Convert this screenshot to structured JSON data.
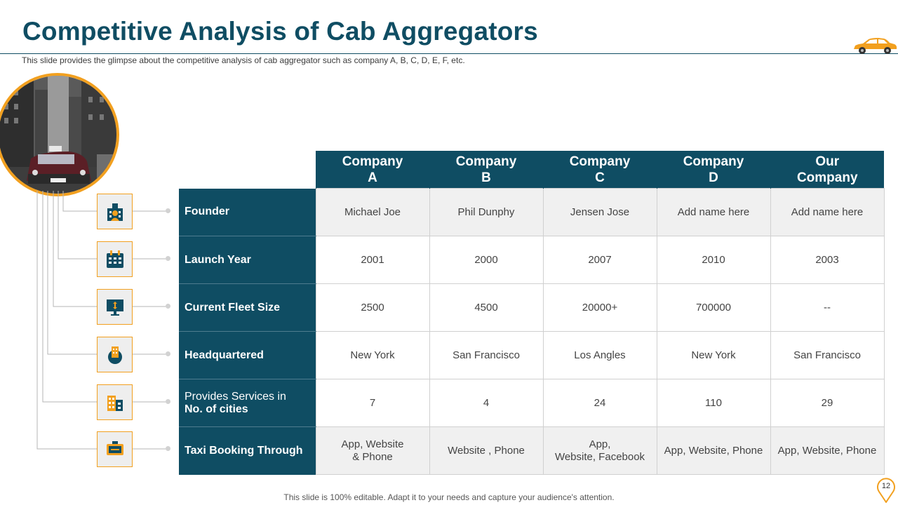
{
  "header": {
    "title": "Competitive Analysis of Cab Aggregators",
    "subtitle": "This slide provides  the glimpse about the competitive  analysis of cab aggregator  such as company A, B, C, D, E, F, etc."
  },
  "table": {
    "columns": [
      {
        "line1": "Company",
        "line2": "A"
      },
      {
        "line1": "Company",
        "line2": "B"
      },
      {
        "line1": "Company",
        "line2": "C"
      },
      {
        "line1": "Company",
        "line2": "D"
      },
      {
        "line1": "Our",
        "line2": "Company"
      }
    ],
    "rows": [
      {
        "label": "Founder",
        "cells": [
          "Michael Joe",
          "Phil Dunphy",
          "Jensen Jose",
          "Add name here",
          "Add name here"
        ]
      },
      {
        "label": "Launch Year",
        "cells": [
          "2001",
          "2000",
          "2007",
          "2010",
          "2003"
        ]
      },
      {
        "label": "Current Fleet Size",
        "cells": [
          "2500",
          "4500",
          "20000+",
          "700000",
          "--"
        ]
      },
      {
        "label": "Headquartered",
        "cells": [
          "New York",
          "San Francisco",
          "Los Angles",
          "New York",
          "San Francisco"
        ]
      },
      {
        "label_line1": "Provides Services in",
        "label_line2": "No. of cities",
        "cells": [
          "7",
          "4",
          "24",
          "110",
          "29"
        ]
      },
      {
        "label": "Taxi Booking Through",
        "cells_multiline": [
          [
            "App, Website",
            "& Phone"
          ],
          [
            "Website , Phone"
          ],
          [
            "App,",
            "Website, Facebook"
          ],
          [
            "App, Website, Phone"
          ],
          [
            "App, Website, Phone"
          ]
        ]
      }
    ]
  },
  "icons": [
    "founder-icon",
    "calendar-icon",
    "fleet-monitor-icon",
    "headquarters-icon",
    "city-buildings-icon",
    "taxi-sign-icon"
  ],
  "footer": {
    "note": "This slide is 100% editable. Adapt it to your needs and capture your audience's attention.",
    "page_number": "12"
  },
  "colors": {
    "primary": "#0f4d63",
    "accent": "#f2a01f",
    "cell_shade": "#f0f0f0"
  }
}
